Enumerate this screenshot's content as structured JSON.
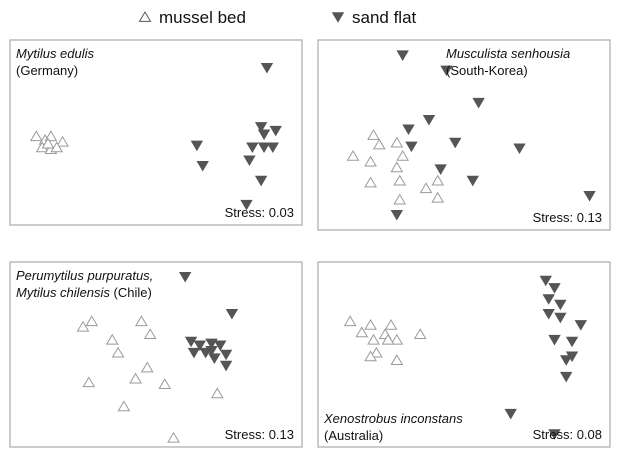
{
  "legend": [
    {
      "name": "mussel bed",
      "marker": "triangle-open",
      "color": "#555555"
    },
    {
      "name": "sand flat",
      "marker": "triangle-filled",
      "color": "#555555"
    }
  ],
  "chart_data": [
    {
      "type": "scatter",
      "title_lines": [
        [
          {
            "text": "Mytilus edulis",
            "italic": true
          }
        ],
        [
          {
            "text": "(Germany)",
            "italic": false
          }
        ]
      ],
      "title_position": "top-left",
      "annotation": "Stress: 0.03",
      "xlim": [
        0,
        100
      ],
      "ylim": [
        0,
        100
      ],
      "series": [
        {
          "marker": "triangle-open",
          "color": "#9a9a9a",
          "x": [
            9,
            12,
            14,
            18,
            11,
            14,
            16,
            13
          ],
          "y": [
            48,
            46,
            48,
            45,
            42,
            41,
            42,
            44
          ]
        },
        {
          "marker": "triangle-filled",
          "color": "#555555",
          "x": [
            88,
            64,
            66,
            86,
            91,
            87,
            90,
            87,
            83,
            82,
            86,
            81
          ],
          "y": [
            85,
            43,
            32,
            53,
            51,
            49,
            42,
            42,
            42,
            35,
            24,
            11
          ]
        }
      ]
    },
    {
      "type": "scatter",
      "title_lines": [
        [
          {
            "text": "Musculista senhousia",
            "italic": true
          }
        ],
        [
          {
            "text": "(South-Korea)",
            "italic": false
          }
        ]
      ],
      "title_position": "top-right",
      "annotation": "Stress: 0.13",
      "xlim": [
        0,
        100
      ],
      "ylim": [
        0,
        100
      ],
      "series": [
        {
          "marker": "triangle-open",
          "color": "#9a9a9a",
          "x": [
            19,
            12,
            21,
            18,
            18,
            27,
            29,
            27,
            28,
            37,
            41,
            28,
            41
          ],
          "y": [
            50,
            39,
            45,
            36,
            25,
            46,
            39,
            33,
            26,
            22,
            26,
            16,
            17
          ]
        },
        {
          "marker": "triangle-filled",
          "color": "#555555",
          "x": [
            29,
            44,
            55,
            31,
            38,
            47,
            69,
            32,
            42,
            53,
            27,
            93
          ],
          "y": [
            92,
            84,
            67,
            53,
            58,
            46,
            43,
            44,
            32,
            26,
            8,
            18
          ]
        }
      ]
    },
    {
      "type": "scatter",
      "title_lines": [
        [
          {
            "text": "Perumytilus purpuratus,",
            "italic": true
          }
        ],
        [
          {
            "text": "Mytilus chilensis",
            "italic": true
          },
          {
            "text": " (Chile)",
            "italic": false
          }
        ]
      ],
      "title_position": "top-left",
      "annotation": "Stress: 0.13",
      "xlim": [
        0,
        100
      ],
      "ylim": [
        0,
        100
      ],
      "series": [
        {
          "marker": "triangle-open",
          "color": "#9a9a9a",
          "x": [
            25,
            28,
            45,
            48,
            35,
            37,
            47,
            43,
            53,
            27,
            39,
            71,
            56
          ],
          "y": [
            65,
            68,
            68,
            61,
            58,
            51,
            43,
            37,
            34,
            35,
            22,
            29,
            5
          ]
        },
        {
          "marker": "triangle-filled",
          "color": "#555555",
          "x": [
            60,
            76,
            62,
            65,
            69,
            72,
            67,
            70,
            74,
            63,
            69,
            74
          ],
          "y": [
            92,
            72,
            57,
            55,
            56,
            55,
            51,
            48,
            50,
            51,
            52,
            44
          ]
        }
      ]
    },
    {
      "type": "scatter",
      "title_lines": [
        [
          {
            "text": "Xenostrobus inconstans",
            "italic": true
          }
        ],
        [
          {
            "text": "(Australia)",
            "italic": false
          }
        ]
      ],
      "title_position": "bottom-left",
      "annotation": "Stress: 0.08",
      "xlim": [
        0,
        100
      ],
      "ylim": [
        0,
        100
      ],
      "series": [
        {
          "marker": "triangle-open",
          "color": "#9a9a9a",
          "x": [
            11,
            18,
            25,
            15,
            23,
            27,
            19,
            35,
            20,
            27,
            18,
            24
          ],
          "y": [
            68,
            66,
            66,
            62,
            61,
            58,
            58,
            61,
            51,
            47,
            49,
            58
          ]
        },
        {
          "marker": "triangle-filled",
          "color": "#555555",
          "x": [
            78,
            81,
            79,
            83,
            79,
            83,
            90,
            81,
            87,
            87,
            85,
            85,
            66,
            81
          ],
          "y": [
            90,
            86,
            80,
            77,
            72,
            70,
            66,
            58,
            57,
            49,
            47,
            38,
            18,
            7
          ]
        }
      ]
    }
  ]
}
